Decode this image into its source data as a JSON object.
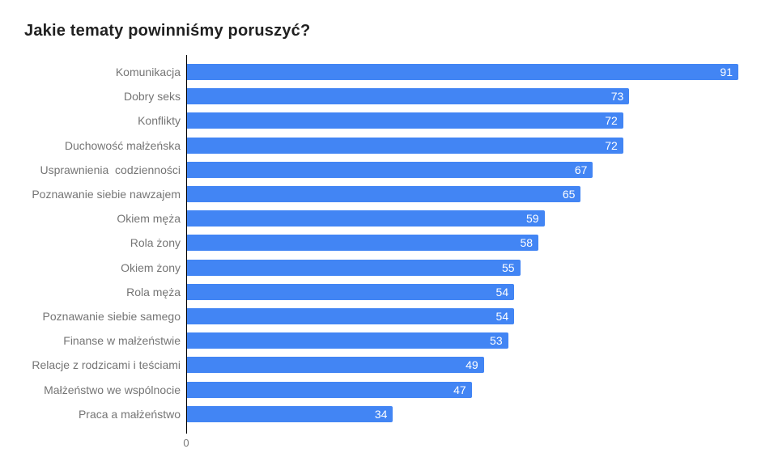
{
  "title": "Jakie tematy powinniśmy poruszyć?",
  "axis": {
    "tick_label": "0"
  },
  "colors": {
    "background": "#ffffff",
    "bar": "#4285f4",
    "title_text": "#212121",
    "category_label": "#757575",
    "value_label": "#ffffff",
    "axis_line": "#000000"
  },
  "chart_data": {
    "type": "bar",
    "orientation": "horizontal",
    "title": "Jakie tematy powinniśmy poruszyć?",
    "categories": [
      "Komunikacja",
      "Dobry seks",
      "Konflikty",
      "Duchowość małżeńska",
      "Usprawnienia  codzienności",
      "Poznawanie siebie nawzajem",
      "Okiem męża",
      "Rola żony",
      "Okiem żony",
      "Rola męża",
      "Poznawanie siebie samego",
      "Finanse w małżeństwie",
      "Relacje z rodzicami i teściami",
      "Małżeństwo we wspólnocie",
      "Praca a małżeństwo"
    ],
    "values": [
      91,
      73,
      72,
      72,
      67,
      65,
      59,
      58,
      55,
      54,
      54,
      53,
      49,
      47,
      34
    ],
    "xlabel": "",
    "ylabel": "",
    "xlim": [
      0,
      91
    ],
    "x_ticks": [
      "0"
    ],
    "grid": false,
    "legend": false,
    "value_labels_position": "inside-end"
  }
}
